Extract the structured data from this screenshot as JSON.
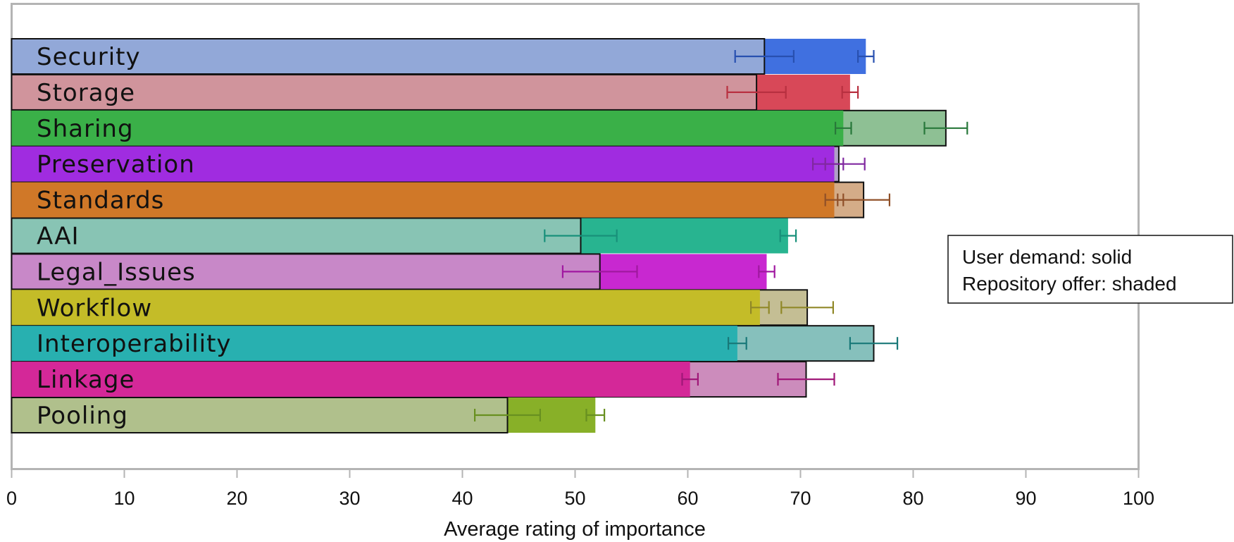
{
  "chart_data": {
    "type": "bar",
    "orientation": "horizontal",
    "xlabel": "Average rating of importance",
    "xlim": [
      0,
      100
    ],
    "xticks": [
      "0",
      "10",
      "20",
      "30",
      "40",
      "50",
      "60",
      "70",
      "80",
      "90",
      "100"
    ],
    "legend": {
      "position": "right",
      "lines": [
        "User demand: solid",
        "Repository offer: shaded"
      ]
    },
    "categories": [
      "Security",
      "Storage",
      "Sharing",
      "Preservation",
      "Standards",
      "AAI",
      "Legal_Issues",
      "Workflow",
      "Interoperability",
      "Linkage",
      "Pooling"
    ],
    "series": [
      {
        "name": "User demand",
        "style": "solid",
        "values": [
          75.8,
          74.4,
          73.8,
          73.0,
          73.0,
          68.9,
          67.0,
          66.4,
          64.4,
          60.2,
          51.8
        ],
        "error": [
          0.7,
          0.7,
          0.7,
          0.8,
          0.8,
          0.7,
          0.7,
          0.8,
          0.8,
          0.7,
          0.8
        ]
      },
      {
        "name": "Repository offer",
        "style": "shaded",
        "values": [
          66.8,
          66.1,
          82.9,
          73.4,
          75.6,
          50.5,
          52.2,
          70.6,
          76.5,
          70.5,
          44.0
        ],
        "error": [
          2.6,
          2.6,
          1.9,
          2.3,
          2.3,
          3.2,
          3.3,
          2.3,
          2.1,
          2.5,
          2.9
        ]
      }
    ],
    "colors": {
      "solid": [
        "#4070e0",
        "#d84858",
        "#3ab048",
        "#a02ce0",
        "#d07828",
        "#28b490",
        "#c828d0",
        "#c4bc28",
        "#28b0b0",
        "#d42898",
        "#88b028"
      ],
      "shaded": [
        "#92a8d8",
        "#d0949c",
        "#8ec094",
        "#b0a0c8",
        "#d4ac88",
        "#88c4b4",
        "#c888c8",
        "#c4be94",
        "#86c0bc",
        "#cc8cbc",
        "#b0c08c"
      ],
      "errorbar": [
        "#2850b0",
        "#b83040",
        "#28783a",
        "#8028a0",
        "#905028",
        "#18907a",
        "#a018a0",
        "#908828",
        "#187878",
        "#a01878",
        "#689020"
      ]
    }
  }
}
